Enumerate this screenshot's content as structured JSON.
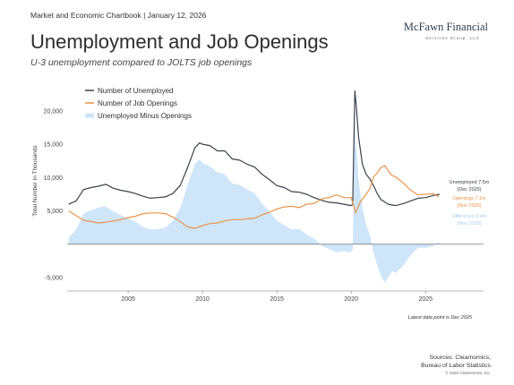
{
  "header": {
    "text": "Market and Economic Chartbook | January 12, 2026"
  },
  "logo": {
    "name": "McFawn Financial",
    "sub": "Services Group, LLC"
  },
  "title": "Unemployment and Job Openings",
  "subtitle": "U-3 unemployment compared to JOLTS job openings",
  "footer": {
    "note": "Latest data point is Dec 2025",
    "sources_line1": "Sources: Clearnomics,",
    "sources_line2": "Bureau of Labor Statistics",
    "copyright": "© 2026 Clearnomics, Inc."
  },
  "chart_data": {
    "type": "line",
    "ylabel": "Total Number in Thousands",
    "xlim": [
      2000.9,
      2028.9
    ],
    "ylim": [
      -7000,
      24000
    ],
    "x_ticks": [
      2005,
      2010,
      2015,
      2020,
      2025
    ],
    "x_tick_labels": [
      "2005",
      "2010",
      "2015",
      "2020",
      "2025"
    ],
    "y_ticks": [
      -5000,
      0,
      5000,
      10000,
      15000,
      20000
    ],
    "y_tick_labels": [
      "-5,000",
      "",
      "5,000",
      "10,000",
      "15,000",
      "20,000"
    ],
    "grid": false,
    "legend": "top-left",
    "series": [
      {
        "name": "Number of Unemployed",
        "color": "#3b4049",
        "x": [
          2001.0,
          2001.5,
          2002.0,
          2002.5,
          2003.0,
          2003.5,
          2004.0,
          2004.5,
          2005.0,
          2005.5,
          2006.0,
          2006.5,
          2007.0,
          2007.5,
          2008.0,
          2008.5,
          2009.0,
          2009.5,
          2009.8,
          2010.0,
          2010.5,
          2011.0,
          2011.5,
          2012.0,
          2012.5,
          2013.0,
          2013.5,
          2014.0,
          2014.5,
          2015.0,
          2015.5,
          2016.0,
          2016.5,
          2017.0,
          2017.5,
          2018.0,
          2018.5,
          2019.0,
          2019.5,
          2020.0,
          2020.1,
          2020.25,
          2020.33,
          2020.5,
          2020.75,
          2021.0,
          2021.25,
          2021.5,
          2021.75,
          2022.0,
          2022.5,
          2023.0,
          2023.5,
          2024.0,
          2024.5,
          2025.0,
          2025.5,
          2025.95
        ],
        "values": [
          6000,
          6500,
          8200,
          8500,
          8700,
          9000,
          8400,
          8100,
          7900,
          7600,
          7200,
          6900,
          7000,
          7100,
          7600,
          8800,
          11500,
          14500,
          15200,
          15000,
          14800,
          14000,
          14000,
          12800,
          12600,
          12000,
          11600,
          10500,
          9700,
          8800,
          8500,
          7900,
          7800,
          7500,
          7000,
          6600,
          6300,
          6200,
          6000,
          5800,
          6000,
          23000,
          21000,
          16000,
          12000,
          10500,
          9800,
          8800,
          7600,
          6700,
          6000,
          5800,
          6100,
          6500,
          6900,
          7000,
          7300,
          7500
        ]
      },
      {
        "name": "Number of Job Openings",
        "color": "#e8954b",
        "x": [
          2001.0,
          2001.5,
          2002.0,
          2002.5,
          2003.0,
          2003.5,
          2004.0,
          2004.5,
          2005.0,
          2005.5,
          2006.0,
          2006.5,
          2007.0,
          2007.5,
          2008.0,
          2008.5,
          2009.0,
          2009.5,
          2010.0,
          2010.5,
          2011.0,
          2011.5,
          2012.0,
          2012.5,
          2013.0,
          2013.5,
          2014.0,
          2014.5,
          2015.0,
          2015.5,
          2016.0,
          2016.5,
          2017.0,
          2017.5,
          2018.0,
          2018.5,
          2019.0,
          2019.5,
          2020.0,
          2020.3,
          2020.6,
          2021.0,
          2021.25,
          2021.5,
          2021.75,
          2022.0,
          2022.25,
          2022.5,
          2022.75,
          2023.0,
          2023.5,
          2024.0,
          2024.5,
          2025.0,
          2025.5,
          2025.9
        ],
        "values": [
          5000,
          4300,
          3600,
          3400,
          3200,
          3300,
          3500,
          3700,
          4000,
          4200,
          4600,
          4700,
          4700,
          4600,
          4100,
          3400,
          2600,
          2400,
          2800,
          3100,
          3200,
          3500,
          3700,
          3700,
          3800,
          3900,
          4400,
          4800,
          5300,
          5600,
          5700,
          5500,
          6000,
          6100,
          6800,
          7000,
          7400,
          7000,
          7000,
          4700,
          6300,
          7500,
          8300,
          10100,
          10700,
          11500,
          11800,
          11000,
          10300,
          10100,
          9200,
          8100,
          7400,
          7500,
          7600,
          7100
        ]
      },
      {
        "name": "Unemployed Minus Openings",
        "color": "#cfe5fa",
        "x": [
          2001.0,
          2001.5,
          2002.0,
          2002.5,
          2003.0,
          2003.5,
          2004.0,
          2004.5,
          2005.0,
          2005.5,
          2006.0,
          2006.5,
          2007.0,
          2007.5,
          2008.0,
          2008.5,
          2009.0,
          2009.5,
          2009.8,
          2010.0,
          2010.5,
          2011.0,
          2011.5,
          2012.0,
          2012.5,
          2013.0,
          2013.5,
          2014.0,
          2014.5,
          2015.0,
          2015.5,
          2016.0,
          2016.5,
          2017.0,
          2017.5,
          2018.0,
          2018.5,
          2019.0,
          2019.5,
          2019.95,
          2020.1,
          2020.25,
          2020.33,
          2020.5,
          2020.75,
          2021.0,
          2021.25,
          2021.5,
          2021.75,
          2022.0,
          2022.25,
          2022.5,
          2022.75,
          2023.0,
          2023.5,
          2024.0,
          2024.5,
          2025.0,
          2025.5,
          2025.9
        ],
        "values": [
          1000,
          2200,
          4600,
          5100,
          5500,
          5700,
          4900,
          4400,
          3900,
          3400,
          2600,
          2200,
          2300,
          2500,
          3500,
          5400,
          8900,
          12100,
          12700,
          12200,
          11700,
          10800,
          10500,
          9100,
          8900,
          8200,
          7700,
          6100,
          4900,
          3500,
          2900,
          2200,
          2300,
          1500,
          900,
          -200,
          -700,
          -1200,
          -1000,
          -1200,
          -800,
          18000,
          15000,
          9500,
          5500,
          3000,
          1500,
          -1300,
          -3100,
          -4800,
          -5700,
          -5000,
          -4000,
          -4300,
          -3200,
          -1600,
          -500,
          -500,
          -300,
          400
        ]
      }
    ],
    "annotations": [
      {
        "series": "Number of Unemployed",
        "line1": "Unemployed 7.5m",
        "line2": "(Dec 2025)"
      },
      {
        "series": "Number of Job Openings",
        "line1": "Openings 7.1m",
        "line2": "(Nov 2025)"
      },
      {
        "series": "Unemployed Minus Openings",
        "line1": "Difference 0.4m",
        "line2": "(Nov 2025)"
      }
    ]
  }
}
